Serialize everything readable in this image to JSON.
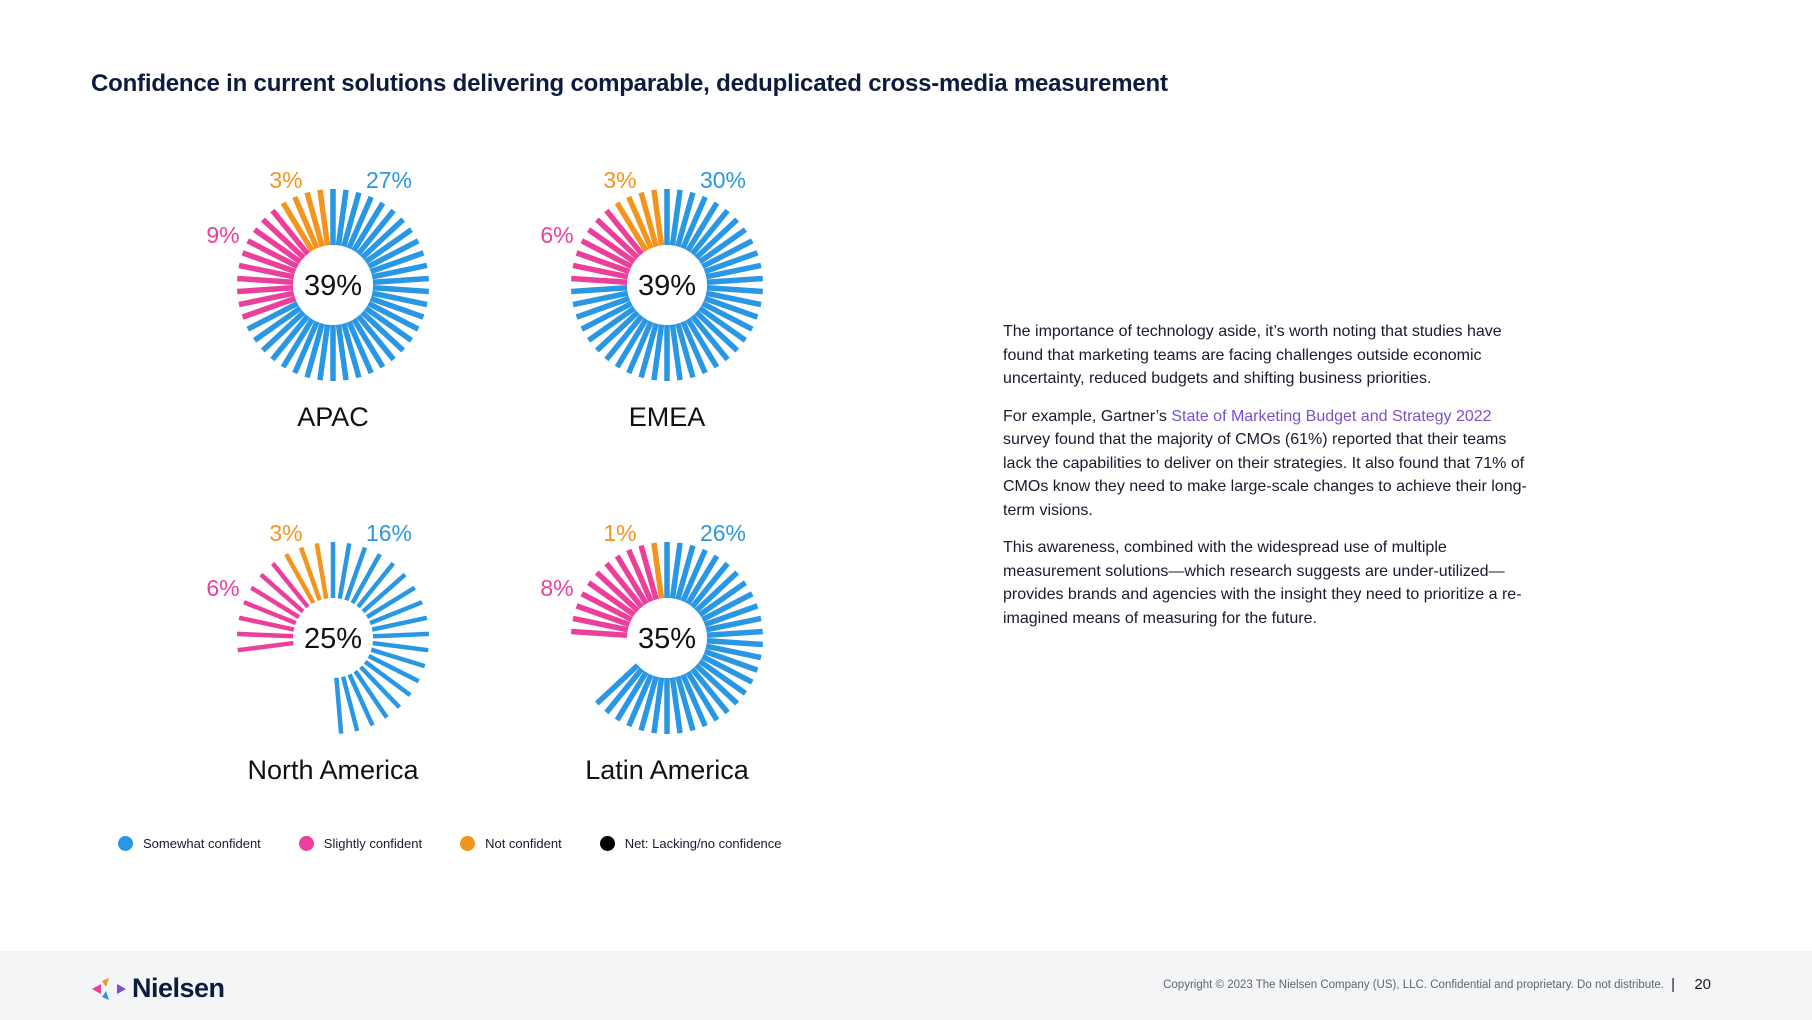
{
  "title": "Confidence in current solutions delivering comparable, deduplicated cross-media measurement",
  "colors": {
    "somewhat": "#2a97e4",
    "slightly": "#ec3f9b",
    "not": "#f3941e",
    "net": "#000000"
  },
  "chart_data": {
    "type": "radial-bar-donut",
    "title": "Confidence in current solutions delivering comparable, deduplicated cross-media measurement",
    "series_names": [
      "Somewhat confident",
      "Slightly confident",
      "Not confident"
    ],
    "charts": [
      {
        "region": "APAC",
        "net": "39%",
        "somewhat": 27,
        "slightly": 9,
        "not": 3,
        "labels": {
          "somewhat": "27%",
          "slightly": "9%",
          "not": "3%"
        }
      },
      {
        "region": "EMEA",
        "net": "39%",
        "somewhat": 30,
        "slightly": 6,
        "not": 3,
        "labels": {
          "somewhat": "30%",
          "slightly": "6%",
          "not": "3%"
        }
      },
      {
        "region": "North America",
        "net": "25%",
        "somewhat": 16,
        "slightly": 6,
        "not": 3,
        "labels": {
          "somewhat": "16%",
          "slightly": "6%",
          "not": "3%"
        }
      },
      {
        "region": "Latin America",
        "net": "35%",
        "somewhat": 26,
        "slightly": 8,
        "not": 1,
        "labels": {
          "somewhat": "26%",
          "slightly": "8%",
          "not": "1%"
        }
      }
    ]
  },
  "legend": [
    {
      "label": "Somewhat confident",
      "color": "#2a97e4"
    },
    {
      "label": "Slightly confident",
      "color": "#ec3f9b"
    },
    {
      "label": "Not confident",
      "color": "#f3941e"
    },
    {
      "label": "Net: Lacking/no confidence",
      "color": "#000000"
    }
  ],
  "body": {
    "p1": "The importance of technology aside, it’s worth noting that studies have found that marketing teams are facing challenges outside economic uncertainty, reduced budgets and shifting business priorities.",
    "p2_before": "For example, Gartner’s ",
    "p2_link": "State of Marketing Budget and Strategy 2022",
    "p2_after": " survey found that the majority of CMOs (61%) reported that their teams lack the capabilities to deliver on their strategies. It also found that 71% of CMOs know they need to make large-scale changes to achieve their long-term visions.",
    "p3": "This awareness, combined with the widespread use of multiple measurement solutions—which research suggests are under-utilized—provides brands and agencies with the insight they need to prioritize a re-imagined means of measuring for the future."
  },
  "footer": {
    "brand": "Nielsen",
    "copyright": "Copyright © 2023 The Nielsen Company (US), LLC. Confidential and proprietary. Do not distribute.",
    "divider": "|",
    "page": "20"
  }
}
